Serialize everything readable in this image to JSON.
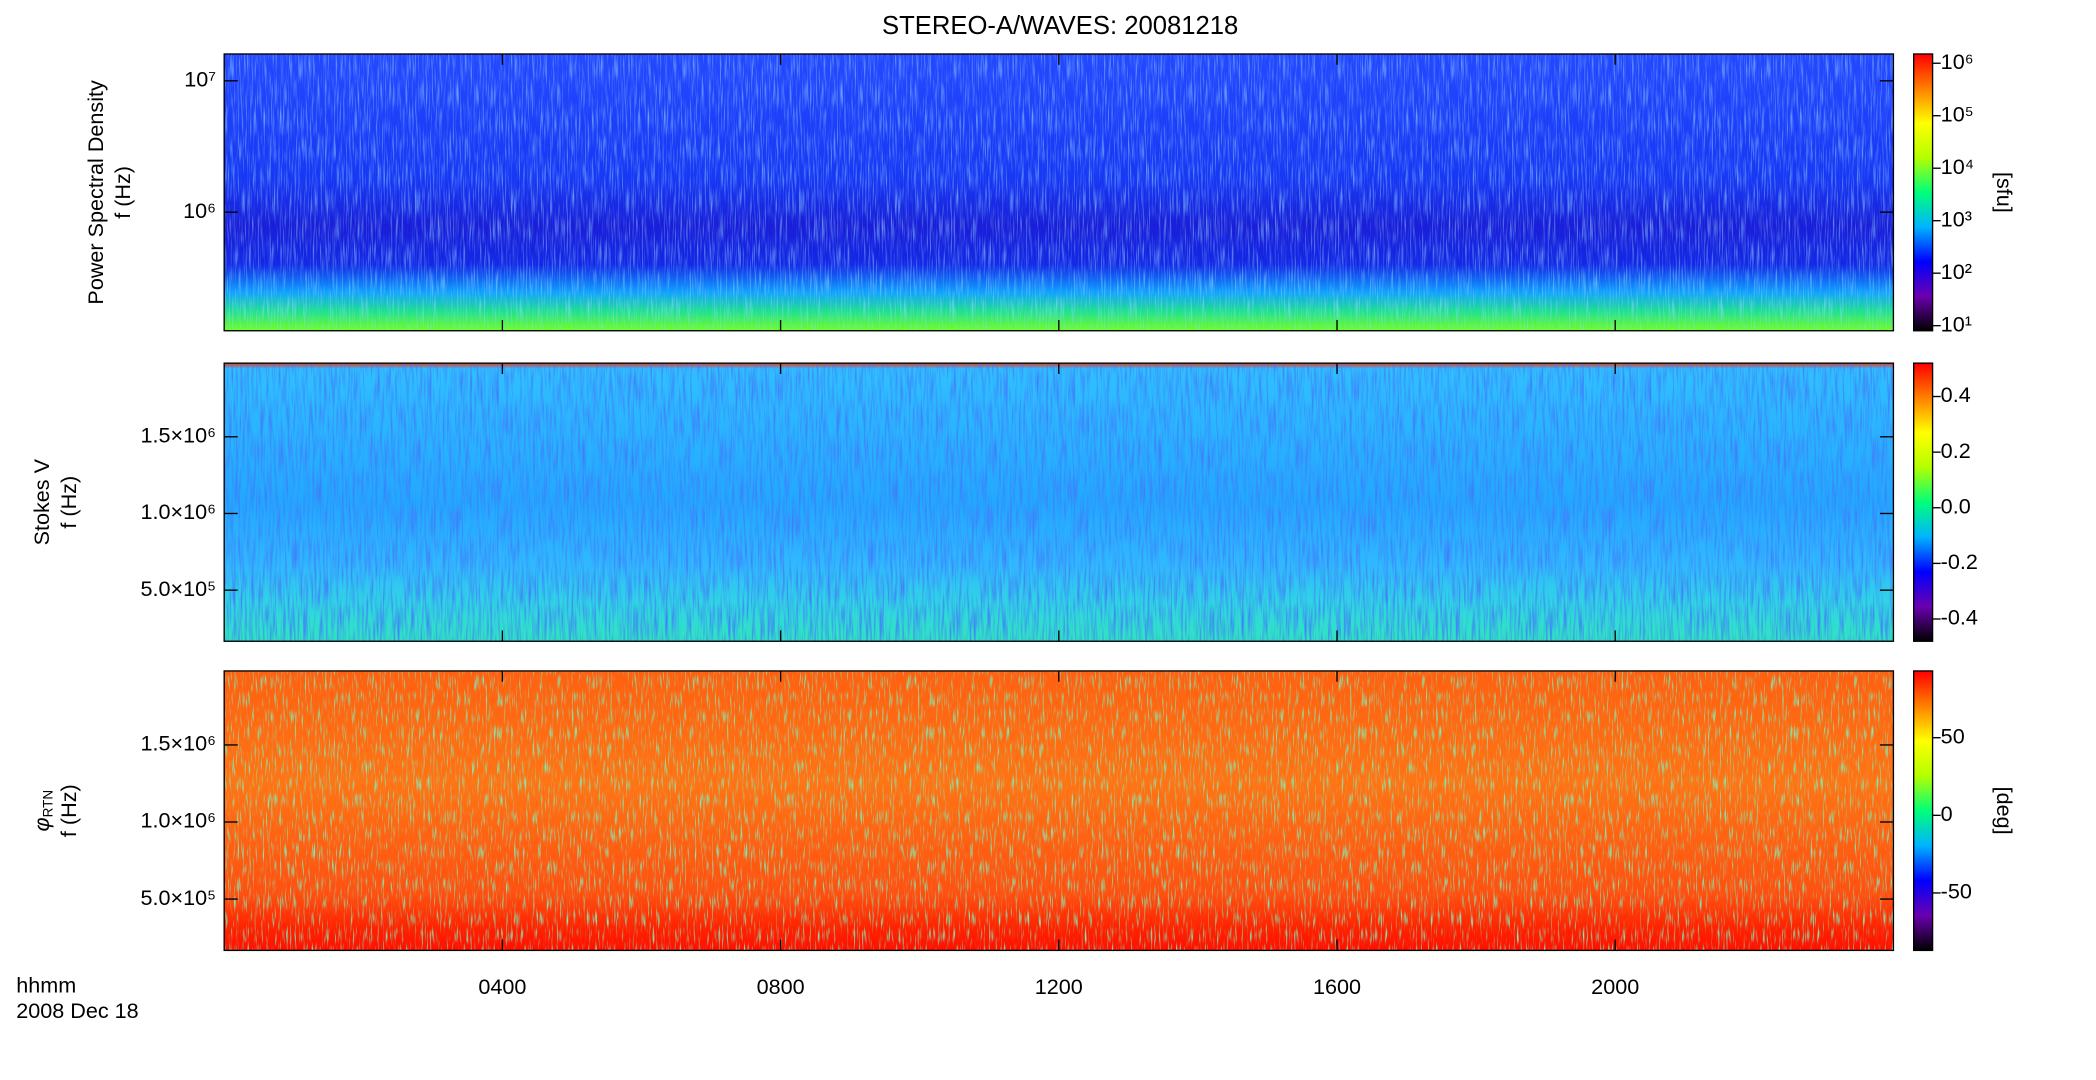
{
  "title": "STEREO-A/WAVES: 20081218",
  "x_axis": {
    "label": "hhmm",
    "date": "2008 Dec 18",
    "xlim": [
      0,
      24
    ],
    "xticks": [
      {
        "value": 4,
        "label": "0400"
      },
      {
        "value": 8,
        "label": "0800"
      },
      {
        "value": 12,
        "label": "1200"
      },
      {
        "value": 16,
        "label": "1600"
      },
      {
        "value": 20,
        "label": "2000"
      }
    ]
  },
  "chart_data": [
    {
      "type": "heatmap",
      "ylabel": [
        "Power Spectral Density",
        "f (Hz)"
      ],
      "ylog": true,
      "ylim": [
        125000,
        16000000
      ],
      "yticks": [
        {
          "value": 1000000,
          "label": "10⁶"
        },
        {
          "value": 10000000,
          "label": "10⁷"
        }
      ],
      "colorbar": {
        "label": "[sfu]",
        "log": true,
        "zlim": [
          8,
          1500000
        ],
        "ticks": [
          {
            "value": 10,
            "label": "10¹"
          },
          {
            "value": 100,
            "label": "10²"
          },
          {
            "value": 1000,
            "label": "10³"
          },
          {
            "value": 10000,
            "label": "10⁴"
          },
          {
            "value": 100000,
            "label": "10⁵"
          },
          {
            "value": 1000000,
            "label": "10⁶"
          }
        ],
        "colormap": [
          "#000000",
          "#6a00b0",
          "#0000ff",
          "#00b4ff",
          "#00ff7a",
          "#b4ff00",
          "#ffff00",
          "#ff8000",
          "#ff0000"
        ]
      }
    },
    {
      "type": "heatmap",
      "ylabel": [
        "Stokes V",
        "f (Hz)"
      ],
      "ylog": false,
      "ylim": [
        167000,
        1980000
      ],
      "yticks": [
        {
          "value": 500000,
          "label": "5.0×10⁵"
        },
        {
          "value": 1000000,
          "label": "1.0×10⁶"
        },
        {
          "value": 1500000,
          "label": "1.5×10⁶"
        }
      ],
      "colorbar": {
        "label": "",
        "log": false,
        "zlim": [
          -0.48,
          0.52
        ],
        "ticks": [
          -0.4,
          -0.2,
          {
            "value": 0,
            "label": "0.0"
          },
          0.2,
          0.4
        ],
        "colormap": [
          "#000000",
          "#6a00b0",
          "#0000ff",
          "#00b4ff",
          "#00ff7a",
          "#b4ff00",
          "#ffff00",
          "#ff8000",
          "#ff0000"
        ]
      }
    },
    {
      "type": "heatmap",
      "ylabel": [
        {
          "symbol": "φ",
          "subscript": "RTN"
        },
        "f (Hz)"
      ],
      "ylog": false,
      "ylim": [
        167000,
        1980000
      ],
      "yticks": [
        {
          "value": 500000,
          "label": "5.0×10⁵"
        },
        {
          "value": 1000000,
          "label": "1.0×10⁶"
        },
        {
          "value": 1500000,
          "label": "1.5×10⁶"
        }
      ],
      "colorbar": {
        "label": "[deg]",
        "log": false,
        "zlim": [
          -87,
          93
        ],
        "ticks": [
          -50,
          0,
          50
        ],
        "colormap": [
          "#000000",
          "#6a00b0",
          "#0000ff",
          "#00b4ff",
          "#00ff7a",
          "#b4ff00",
          "#ffff00",
          "#ff8000",
          "#ff0000"
        ]
      }
    }
  ]
}
